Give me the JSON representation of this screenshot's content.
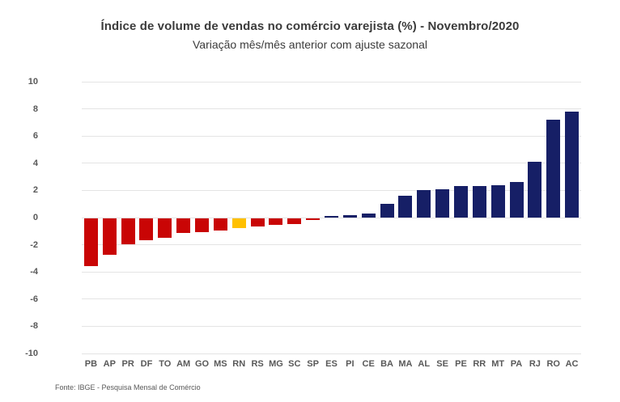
{
  "header": {
    "title": "Índice de volume de vendas no comércio varejista (%) - Novembro/2020",
    "subtitle": "Variação mês/mês anterior com ajuste sazonal"
  },
  "footer": {
    "source": "Fonte: IBGE - Pesquisa Mensal de Comércio"
  },
  "colors": {
    "negative_bar": "#C90505",
    "positive_bar": "#161F66",
    "highlight_bar": "#FFC000",
    "gridline": "#E4E4E4",
    "axis_text": "#595959",
    "title_text": "#3B3B3B"
  },
  "chart_data": {
    "type": "bar",
    "title": "Índice de volume de vendas no comércio varejista (%) - Novembro/2020",
    "subtitle": "Variação mês/mês anterior com ajuste sazonal",
    "categories": [
      "PB",
      "AP",
      "PR",
      "DF",
      "TO",
      "AM",
      "GO",
      "MS",
      "RN",
      "RS",
      "MG",
      "SC",
      "SP",
      "ES",
      "PI",
      "CE",
      "BA",
      "MA",
      "AL",
      "SE",
      "PE",
      "RR",
      "MT",
      "PA",
      "RJ",
      "RO",
      "AC"
    ],
    "values": [
      -3.5,
      -2.7,
      -1.9,
      -1.6,
      -1.4,
      -1.1,
      -1.0,
      -0.9,
      -0.7,
      -0.6,
      -0.5,
      -0.4,
      -0.1,
      0.1,
      0.2,
      0.3,
      1.0,
      1.6,
      2.0,
      2.1,
      2.3,
      2.3,
      2.4,
      2.6,
      4.1,
      7.2,
      7.8
    ],
    "highlighted_category": "RN",
    "xlabel": "",
    "ylabel": "",
    "ylim": [
      -10,
      10
    ],
    "ytick_step": 2,
    "grid": "horizontal",
    "legend": "none",
    "sort_order": "ascending"
  }
}
